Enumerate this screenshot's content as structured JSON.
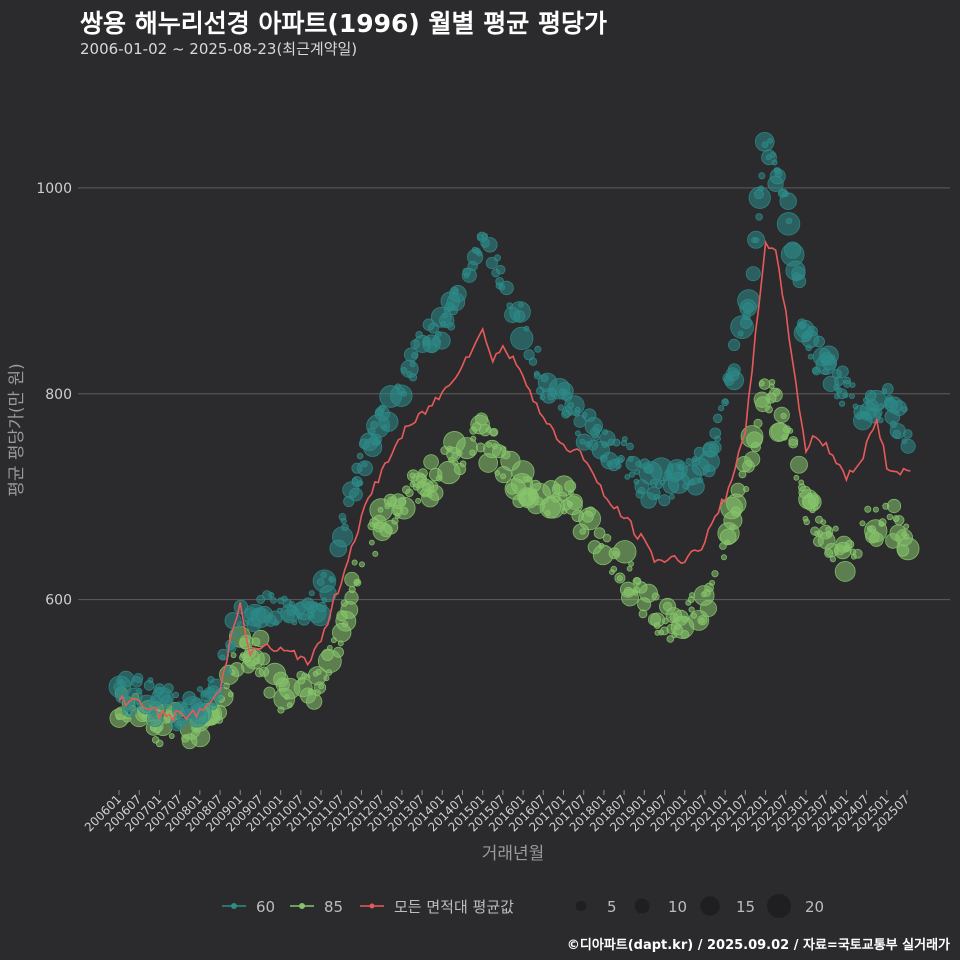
{
  "title": "쌍용 해누리선경 아파트(1996) 월별 평균 평당가",
  "subtitle": "2006-01-02 ~ 2025-08-23(최근계약일)",
  "caption": "©디아파트(dapt.kr) / 2025.09.02 / 자료=국토교통부 실거래가",
  "colors": {
    "background": "#2b2b2d",
    "grid": "#5e5e60",
    "series_60": "#2e8b88",
    "series_85": "#86c46b",
    "avg_line": "#e85a5a"
  },
  "chart_data": {
    "type": "scatter",
    "xlabel": "거래년월",
    "ylabel": "평균 평당가(만 원)",
    "ylim": [
      415,
      1100
    ],
    "yticks": [
      600,
      800,
      1000
    ],
    "grid": true,
    "legend_position": "bottom",
    "x_ticks": [
      "200601",
      "200607",
      "200701",
      "200707",
      "200801",
      "200807",
      "200901",
      "200907",
      "201001",
      "201007",
      "201101",
      "201107",
      "201201",
      "201207",
      "201301",
      "201307",
      "201401",
      "201407",
      "201501",
      "201507",
      "201601",
      "201607",
      "201701",
      "201707",
      "201801",
      "201807",
      "201901",
      "201907",
      "202001",
      "202007",
      "202101",
      "202107",
      "202201",
      "202207",
      "202301",
      "202307",
      "202401",
      "202407",
      "202501",
      "202507"
    ],
    "legend": {
      "series_items": [
        {
          "key": "60",
          "label": "60"
        },
        {
          "key": "85",
          "label": "85"
        },
        {
          "key": "avg",
          "label": "모든 면적대 평균값"
        }
      ],
      "size_items": [
        5,
        10,
        15,
        20
      ]
    },
    "anchors_60": [
      [
        "2006-01",
        505
      ],
      [
        "2006-07",
        510
      ],
      [
        "2007-01",
        500
      ],
      [
        "2007-07",
        492
      ],
      [
        "2008-01",
        495
      ],
      [
        "2008-07",
        520
      ],
      [
        "2009-01",
        585
      ],
      [
        "2009-07",
        590
      ],
      [
        "2010-01",
        585
      ],
      [
        "2010-07",
        585
      ],
      [
        "2011-01",
        600
      ],
      [
        "2011-07",
        670
      ],
      [
        "2012-01",
        730
      ],
      [
        "2012-07",
        775
      ],
      [
        "2013-01",
        805
      ],
      [
        "2013-07",
        850
      ],
      [
        "2014-01",
        860
      ],
      [
        "2014-07",
        900
      ],
      [
        "2015-01",
        945
      ],
      [
        "2015-07",
        910
      ],
      [
        "2016-01",
        870
      ],
      [
        "2016-07",
        810
      ],
      [
        "2017-01",
        790
      ],
      [
        "2017-07",
        770
      ],
      [
        "2018-01",
        750
      ],
      [
        "2018-07",
        740
      ],
      [
        "2019-01",
        715
      ],
      [
        "2019-07",
        710
      ],
      [
        "2020-01",
        715
      ],
      [
        "2020-07",
        730
      ],
      [
        "2021-01",
        790
      ],
      [
        "2021-07",
        870
      ],
      [
        "2022-01",
        1040
      ],
      [
        "2022-07",
        1000
      ],
      [
        "2023-01",
        850
      ],
      [
        "2023-07",
        830
      ],
      [
        "2024-01",
        800
      ],
      [
        "2024-07",
        790
      ],
      [
        "2025-01",
        790
      ],
      [
        "2025-07",
        765
      ]
    ],
    "anchors_85": [
      [
        "2006-01",
        500
      ],
      [
        "2006-07",
        495
      ],
      [
        "2007-01",
        478
      ],
      [
        "2007-07",
        480
      ],
      [
        "2008-01",
        480
      ],
      [
        "2008-07",
        500
      ],
      [
        "2009-01",
        550
      ],
      [
        "2009-07",
        545
      ],
      [
        "2010-01",
        510
      ],
      [
        "2010-07",
        515
      ],
      [
        "2011-01",
        520
      ],
      [
        "2011-07",
        575
      ],
      [
        "2012-01",
        640
      ],
      [
        "2012-07",
        670
      ],
      [
        "2013-01",
        700
      ],
      [
        "2013-07",
        710
      ],
      [
        "2014-01",
        725
      ],
      [
        "2014-07",
        745
      ],
      [
        "2015-01",
        760
      ],
      [
        "2015-07",
        730
      ],
      [
        "2016-01",
        710
      ],
      [
        "2016-07",
        700
      ],
      [
        "2017-01",
        700
      ],
      [
        "2017-07",
        680
      ],
      [
        "2018-01",
        650
      ],
      [
        "2018-07",
        630
      ],
      [
        "2019-01",
        600
      ],
      [
        "2019-07",
        575
      ],
      [
        "2020-01",
        580
      ],
      [
        "2020-07",
        600
      ],
      [
        "2021-01",
        650
      ],
      [
        "2021-07",
        720
      ],
      [
        "2022-01",
        810
      ],
      [
        "2022-07",
        760
      ],
      [
        "2023-01",
        690
      ],
      [
        "2023-07",
        665
      ],
      [
        "2024-01",
        640
      ],
      [
        "2024-07",
        670
      ],
      [
        "2025-01",
        680
      ],
      [
        "2025-07",
        660
      ]
    ],
    "average": [
      [
        "2006-01",
        502
      ],
      [
        "2006-07",
        502
      ],
      [
        "2007-01",
        488
      ],
      [
        "2007-07",
        487
      ],
      [
        "2008-01",
        490
      ],
      [
        "2008-07",
        510
      ],
      [
        "2008-10",
        560
      ],
      [
        "2009-01",
        600
      ],
      [
        "2009-04",
        545
      ],
      [
        "2009-07",
        555
      ],
      [
        "2010-01",
        550
      ],
      [
        "2010-07",
        545
      ],
      [
        "2010-10",
        540
      ],
      [
        "2011-01",
        560
      ],
      [
        "2011-07",
        620
      ],
      [
        "2012-01",
        680
      ],
      [
        "2012-07",
        725
      ],
      [
        "2013-01",
        760
      ],
      [
        "2013-07",
        780
      ],
      [
        "2014-01",
        800
      ],
      [
        "2014-07",
        830
      ],
      [
        "2015-01",
        860
      ],
      [
        "2015-04",
        835
      ],
      [
        "2015-07",
        845
      ],
      [
        "2016-01",
        820
      ],
      [
        "2016-07",
        775
      ],
      [
        "2017-01",
        750
      ],
      [
        "2017-07",
        740
      ],
      [
        "2018-01",
        700
      ],
      [
        "2018-07",
        680
      ],
      [
        "2019-01",
        655
      ],
      [
        "2019-04",
        640
      ],
      [
        "2019-07",
        638
      ],
      [
        "2020-01",
        640
      ],
      [
        "2020-07",
        655
      ],
      [
        "2020-10",
        680
      ],
      [
        "2021-01",
        700
      ],
      [
        "2021-07",
        760
      ],
      [
        "2022-01",
        950
      ],
      [
        "2022-04",
        935
      ],
      [
        "2022-07",
        880
      ],
      [
        "2022-10",
        810
      ],
      [
        "2023-01",
        745
      ],
      [
        "2023-04",
        760
      ],
      [
        "2023-07",
        750
      ],
      [
        "2024-01",
        720
      ],
      [
        "2024-04",
        725
      ],
      [
        "2024-07",
        750
      ],
      [
        "2024-10",
        775
      ],
      [
        "2025-01",
        730
      ],
      [
        "2025-04",
        725
      ],
      [
        "2025-08",
        725
      ]
    ]
  }
}
